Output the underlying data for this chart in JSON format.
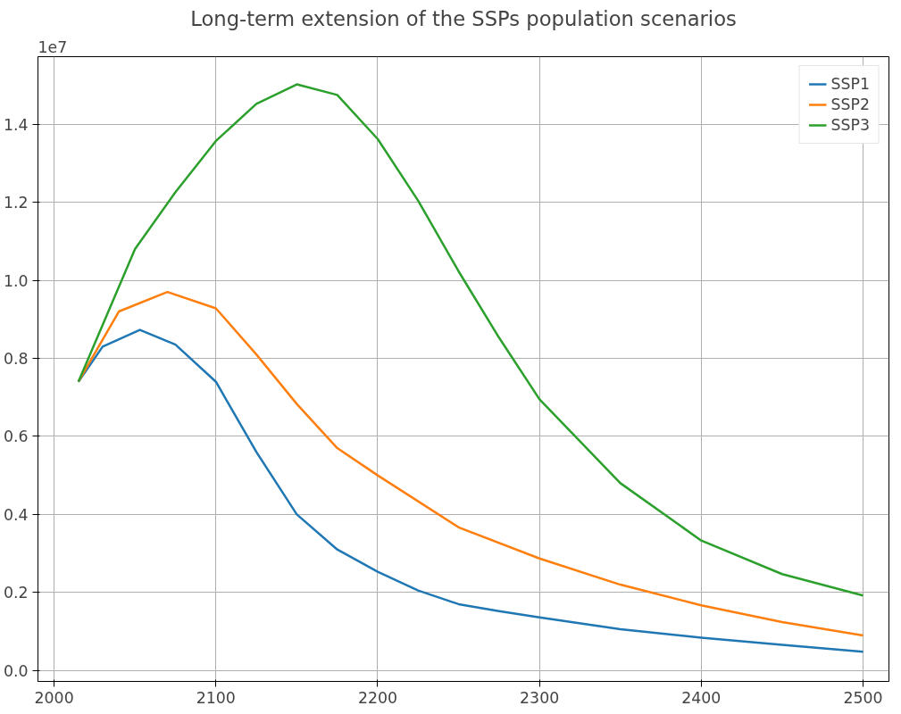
{
  "chart_data": {
    "type": "line",
    "title": "Long-term extension of the SSPs population scenarios",
    "annotations": [
      "1e7"
    ],
    "x": [
      2015,
      2030,
      2053,
      2075,
      2100,
      2125,
      2150,
      2175,
      2200,
      2225,
      2250,
      2275,
      2300,
      2350,
      2400,
      2450,
      2500
    ],
    "series": [
      {
        "name": "SSP1",
        "color": "#1f77b4",
        "values": [
          0.74,
          0.83,
          0.873,
          0.835,
          0.74,
          0.56,
          0.4,
          0.31,
          0.253,
          0.205,
          0.17,
          0.152,
          0.136,
          0.106,
          0.084,
          0.066,
          0.048
        ]
      },
      {
        "name": "SSP2",
        "color": "#ff7f0e",
        "x": [
          2015,
          2040,
          2070,
          2100,
          2125,
          2150,
          2175,
          2200,
          2250,
          2300,
          2350,
          2400,
          2450,
          2500
        ],
        "values": [
          0.74,
          0.92,
          0.97,
          0.928,
          0.81,
          0.683,
          0.57,
          0.5,
          0.367,
          0.287,
          0.22,
          0.167,
          0.124,
          0.09
        ]
      },
      {
        "name": "SSP3",
        "color": "#2ca02c",
        "x": [
          2015,
          2050,
          2075,
          2100,
          2125,
          2150,
          2175,
          2200,
          2225,
          2250,
          2275,
          2300,
          2350,
          2400,
          2450,
          2500
        ],
        "values": [
          0.74,
          1.08,
          1.226,
          1.357,
          1.452,
          1.502,
          1.475,
          1.362,
          1.204,
          1.023,
          0.853,
          0.695,
          0.48,
          0.333,
          0.247,
          0.192
        ]
      }
    ],
    "xlim": [
      1990,
      2516
    ],
    "ylim": [
      -0.028,
      1.573
    ],
    "xticks": [
      2000,
      2100,
      2200,
      2300,
      2400,
      2500
    ],
    "yticks": [
      {
        "value": 0,
        "label": "0.0"
      },
      0.2,
      0.4,
      0.6,
      0.8,
      {
        "value": 1,
        "label": "1.0"
      },
      1.2,
      1.4
    ],
    "grid": true,
    "legend": "top right",
    "line_style": "solid",
    "marker": "none"
  }
}
